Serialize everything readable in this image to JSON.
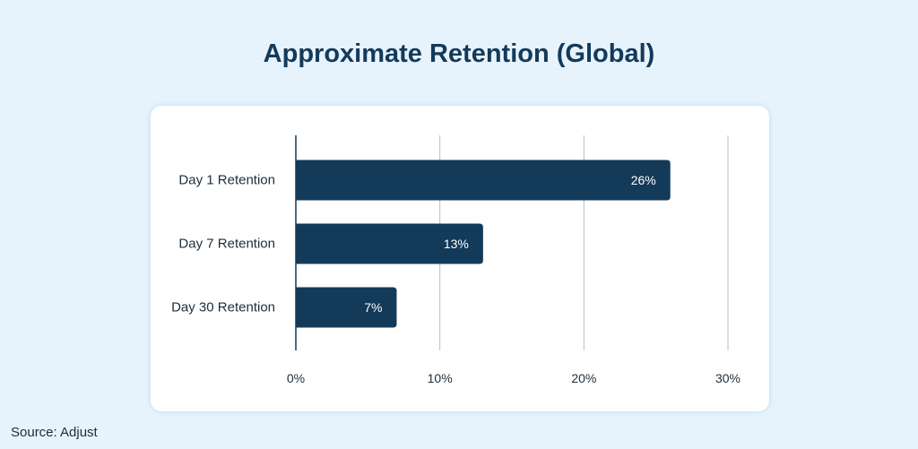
{
  "chart_data": {
    "type": "bar",
    "orientation": "horizontal",
    "title": "Approximate Retention (Global)",
    "categories": [
      "Day 1 Retention",
      "Day 7 Retention",
      "Day 30 Retention"
    ],
    "values": [
      26,
      13,
      7
    ],
    "value_labels": [
      "26%",
      "13%",
      "7%"
    ],
    "x_ticks": [
      0,
      10,
      20,
      30
    ],
    "x_tick_labels": [
      "0%",
      "10%",
      "20%",
      "30%"
    ],
    "xlim": [
      0,
      30
    ],
    "xlabel": "",
    "ylabel": "",
    "grid": true,
    "bar_color": "#143a5a",
    "grid_color": "#b9bec4",
    "source": "Source: Adjust"
  }
}
